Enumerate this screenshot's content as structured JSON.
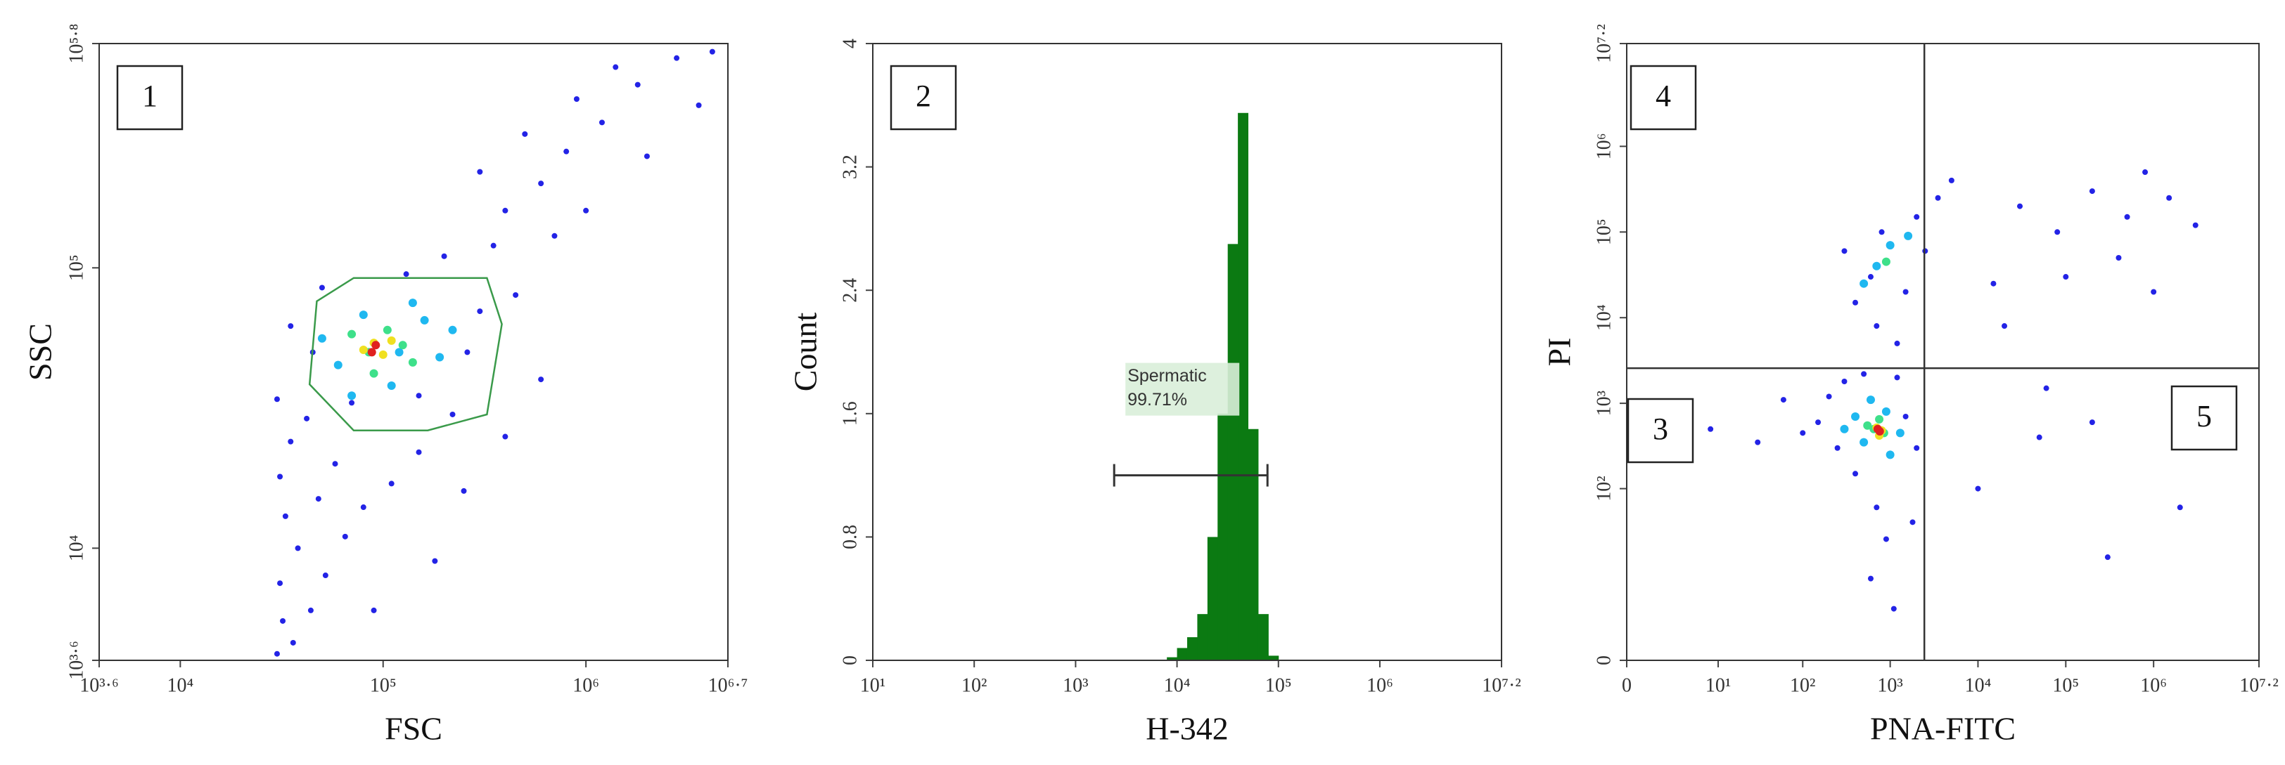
{
  "chart_data": [
    {
      "type": "scatter",
      "panel_label": "1",
      "xlabel": "FSC",
      "ylabel": "SSC",
      "xscale": "log",
      "yscale": "log",
      "xlim": [
        3981,
        5011872
      ],
      "ylim": [
        3981,
        630957
      ],
      "xticks": [
        {
          "value": 3981,
          "label": "10³·⁶"
        },
        {
          "value": 10000,
          "label": "10⁴"
        },
        {
          "value": 100000,
          "label": "10⁵"
        },
        {
          "value": 1000000,
          "label": "10⁶"
        },
        {
          "value": 5011872,
          "label": "10⁶·⁷"
        }
      ],
      "yticks": [
        {
          "value": 3981,
          "label": "10³·⁶"
        },
        {
          "value": 10000,
          "label": "10⁴"
        },
        {
          "value": 100000,
          "label": "10⁵"
        },
        {
          "value": 630957,
          "label": "10⁵·⁸"
        }
      ],
      "gate": {
        "color": "#3a9a4a",
        "x": [
          47100,
          71600,
          325000,
          385000,
          325000,
          166000,
          71600,
          43400
        ],
        "y": [
          76000,
          92000,
          92000,
          63000,
          30000,
          26300,
          26300,
          38400
        ]
      },
      "series": [
        {
          "color": "#2323e6",
          "x": [
            30000,
            32000,
            36000,
            44000,
            31000,
            52000,
            38000,
            65000,
            33000,
            48000,
            80000,
            31000,
            110000,
            58000,
            35000,
            150000,
            42000,
            220000,
            30000,
            70000,
            45000,
            260000,
            35000,
            300000,
            50000,
            130000,
            200000,
            350000,
            400000,
            600000,
            300000,
            800000,
            500000,
            1200000,
            900000,
            1800000,
            1400000,
            2800000,
            700000,
            450000,
            1000000,
            2000000,
            150000,
            250000,
            400000,
            90000,
            180000,
            600000,
            3600000,
            4200000
          ],
          "values": [
            4200,
            5500,
            4600,
            6000,
            7500,
            8000,
            10000,
            11000,
            13000,
            15000,
            14000,
            18000,
            17000,
            20000,
            24000,
            22000,
            29000,
            30000,
            34000,
            33000,
            50000,
            50000,
            62000,
            70000,
            85000,
            95000,
            110000,
            120000,
            160000,
            200000,
            220000,
            260000,
            300000,
            330000,
            400000,
            450000,
            520000,
            560000,
            130000,
            80000,
            160000,
            250000,
            35000,
            16000,
            25000,
            6000,
            9000,
            40000,
            380000,
            590000
          ]
        },
        {
          "color": "#1fb8f0",
          "x": [
            60000,
            80000,
            120000,
            160000,
            110000,
            70000,
            190000,
            140000,
            50000,
            220000
          ],
          "values": [
            45000,
            68000,
            50000,
            65000,
            38000,
            35000,
            48000,
            75000,
            56000,
            60000
          ]
        },
        {
          "color": "#3ee08a",
          "x": [
            85000,
            105000,
            125000,
            90000,
            70000,
            140000
          ],
          "values": [
            50000,
            60000,
            53000,
            42000,
            58000,
            46000
          ]
        },
        {
          "color": "#f0e020",
          "x": [
            90000,
            100000,
            80000,
            110000
          ],
          "values": [
            54000,
            49000,
            51000,
            55000
          ]
        },
        {
          "color": "#e02020",
          "x": [
            92000,
            88000
          ],
          "values": [
            53000,
            50000
          ]
        }
      ]
    },
    {
      "type": "histogram",
      "panel_label": "2",
      "xlabel": "H-342",
      "ylabel": "Count",
      "xscale": "log",
      "yscale": "linear",
      "color": "#0b7a12",
      "xlim": [
        10,
        15848932
      ],
      "ylim": [
        0,
        4
      ],
      "xticks": [
        {
          "value": 10,
          "label": "10¹"
        },
        {
          "value": 100,
          "label": "10²"
        },
        {
          "value": 1000,
          "label": "10³"
        },
        {
          "value": 10000,
          "label": "10⁴"
        },
        {
          "value": 100000,
          "label": "10⁵"
        },
        {
          "value": 1000000,
          "label": "10⁶"
        },
        {
          "value": 15848932,
          "label": "10⁷·²"
        }
      ],
      "yticks": [
        0,
        0.8,
        1.6,
        2.4,
        3.2,
        4
      ],
      "bins": [
        7943,
        10000,
        12589,
        15849,
        19953,
        25119,
        31623,
        39811,
        50119,
        63096,
        79433,
        100000
      ],
      "counts": [
        0.02,
        0.08,
        0.15,
        0.3,
        0.8,
        1.6,
        2.7,
        3.55,
        1.5,
        0.3,
        0.03
      ],
      "gate": {
        "name": "Spermatic",
        "value": 99.71,
        "value_label": "99.71%",
        "range": [
          2400,
          78000
        ],
        "y": 1.2
      }
    },
    {
      "type": "scatter",
      "panel_labels": [
        "4",
        "3",
        "5"
      ],
      "xlabel": "PNA-FITC",
      "ylabel": "PI",
      "xscale": "symlog",
      "yscale": "symlog",
      "xlim": [
        0,
        15848932
      ],
      "ylim": [
        0,
        15848932
      ],
      "xticks": [
        0,
        {
          "value": 10,
          "label": "10¹"
        },
        {
          "value": 100,
          "label": "10²"
        },
        {
          "value": 1000,
          "label": "10³"
        },
        {
          "value": 10000,
          "label": "10⁴"
        },
        {
          "value": 100000,
          "label": "10⁵"
        },
        {
          "value": 1000000,
          "label": "10⁶"
        },
        {
          "value": 15848932,
          "label": "10⁷·²"
        }
      ],
      "yticks": [
        0,
        {
          "value": 100,
          "label": "10²"
        },
        {
          "value": 1000,
          "label": "10³"
        },
        {
          "value": 10000,
          "label": "10⁴"
        },
        {
          "value": 100000,
          "label": "10⁵"
        },
        {
          "value": 1000000,
          "label": "10⁶"
        },
        {
          "value": 15848932,
          "label": "10⁷·²"
        }
      ],
      "quadrant": {
        "x": 2450,
        "y": 2570
      },
      "series": [
        {
          "color": "#2323e6",
          "x": [
            150,
            250,
            200,
            400,
            1500,
            2000,
            300,
            500,
            1200,
            100,
            30,
            8,
            60,
            700,
            900,
            600,
            1100,
            1800,
            400,
            600,
            1500,
            800,
            2000,
            3500,
            5000,
            300,
            1200,
            700,
            2500,
            30000,
            80000,
            200000,
            500000,
            1500000,
            3000000,
            100000,
            400000,
            20000,
            60000,
            200000,
            1000000,
            800000,
            300000,
            10000,
            50000,
            2000000,
            15000
          ],
          "values": [
            600,
            300,
            1200,
            150,
            700,
            300,
            1800,
            2200,
            2000,
            450,
            350,
            500,
            1100,
            60,
            25,
            8,
            3,
            40,
            15000,
            30000,
            20000,
            100000,
            150000,
            250000,
            400000,
            60000,
            5000,
            8000,
            60000,
            200000,
            100000,
            300000,
            150000,
            250000,
            120000,
            30000,
            50000,
            8000,
            1500,
            600,
            20000,
            500000,
            15,
            100,
            400,
            60,
            25000
          ]
        },
        {
          "color": "#1fb8f0",
          "x": [
            500,
            900,
            400,
            1000,
            600,
            300,
            1300,
            700,
            1000,
            1600,
            500
          ],
          "values": [
            350,
            800,
            700,
            250,
            1100,
            500,
            450,
            40000,
            70000,
            90000,
            25000
          ]
        },
        {
          "color": "#3ee08a",
          "x": [
            650,
            850,
            750,
            550,
            900
          ],
          "values": [
            500,
            450,
            650,
            550,
            45000
          ]
        },
        {
          "color": "#f0e020",
          "x": [
            700,
            800,
            750
          ],
          "values": [
            520,
            480,
            420
          ]
        },
        {
          "color": "#e02020",
          "x": [
            760,
            720
          ],
          "values": [
            470,
            500
          ]
        }
      ]
    }
  ]
}
